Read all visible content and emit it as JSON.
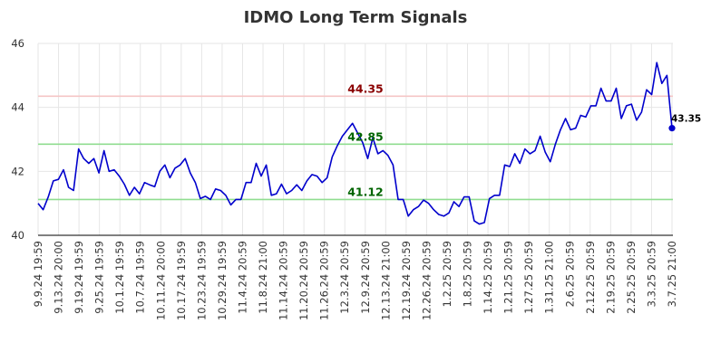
{
  "chart_data": {
    "type": "line",
    "title": "IDMO Long Term Signals",
    "xlabel": "",
    "ylabel": "",
    "ylim": [
      40,
      46
    ],
    "yticks": [
      40,
      42,
      44,
      46
    ],
    "grid": true,
    "line_color": "#0000cc",
    "x_tick_labels": [
      "9.9.24 19:59",
      "9.13.24 20:00",
      "9.19.24 19:59",
      "9.25.24 19:59",
      "10.1.24 19:59",
      "10.7.24 19:59",
      "10.11.24 20:00",
      "10.17.24 19:59",
      "10.23.24 19:59",
      "10.29.24 19:59",
      "11.4.24 20:59",
      "11.8.24 21:00",
      "11.14.24 20:59",
      "11.20.24 20:59",
      "11.26.24 20:59",
      "12.3.24 20:59",
      "12.9.24 20:59",
      "12.13.24 21:00",
      "12.19.24 20:59",
      "12.26.24 20:59",
      "1.2.25 20:59",
      "1.8.25 20:59",
      "1.14.25 20:59",
      "1.21.25 20:59",
      "1.27.25 20:59",
      "1.31.25 21:00",
      "2.6.25 20:59",
      "2.12.25 20:59",
      "2.19.25 20:59",
      "2.25.25 20:59",
      "3.3.25 20:59",
      "3.7.25 21:00"
    ],
    "series": [
      {
        "values": [
          41.0,
          40.8,
          41.2,
          41.7,
          41.75,
          42.05,
          41.5,
          41.4,
          42.7,
          42.4,
          42.25,
          42.4,
          41.95,
          42.65,
          42.0,
          42.05,
          41.85,
          41.6,
          41.25,
          41.5,
          41.3,
          41.65,
          41.58,
          41.52,
          42.0,
          42.2,
          41.8,
          42.1,
          42.2,
          42.4,
          41.95,
          41.65,
          41.15,
          41.22,
          41.12,
          41.45,
          41.4,
          41.25,
          40.95,
          41.12,
          41.12,
          41.65,
          41.65,
          42.25,
          41.85,
          42.2,
          41.25,
          41.3,
          41.6,
          41.3,
          41.4,
          41.58,
          41.4,
          41.7,
          41.9,
          41.85,
          41.65,
          41.8,
          42.45,
          42.8,
          43.1,
          43.3,
          43.5,
          43.2,
          42.9,
          42.4,
          43.05,
          42.55,
          42.65,
          42.5,
          42.2,
          41.12,
          41.12,
          40.6,
          40.8,
          40.9,
          41.1,
          41.0,
          40.8,
          40.65,
          40.6,
          40.7,
          41.05,
          40.9,
          41.2,
          41.2,
          40.45,
          40.35,
          40.4,
          41.15,
          41.25,
          41.25,
          42.2,
          42.15,
          42.55,
          42.25,
          42.7,
          42.55,
          42.65,
          43.1,
          42.6,
          42.3,
          42.85,
          43.3,
          43.65,
          43.3,
          43.35,
          43.75,
          43.7,
          44.05,
          44.05,
          44.6,
          44.2,
          44.2,
          44.6,
          43.65,
          44.05,
          44.1,
          43.6,
          43.85,
          44.55,
          44.4,
          45.4,
          44.75,
          45.0,
          43.35
        ]
      }
    ],
    "reference_lines": [
      {
        "label": "44.35",
        "value": 44.35,
        "line_color": "#f5c6c6",
        "text_color": "#8b0000"
      },
      {
        "label": "42.85",
        "value": 42.85,
        "line_color": "#90dd90",
        "text_color": "#006400"
      },
      {
        "label": "41.12",
        "value": 41.12,
        "line_color": "#90dd90",
        "text_color": "#006400"
      }
    ],
    "end_label": "43.35"
  }
}
